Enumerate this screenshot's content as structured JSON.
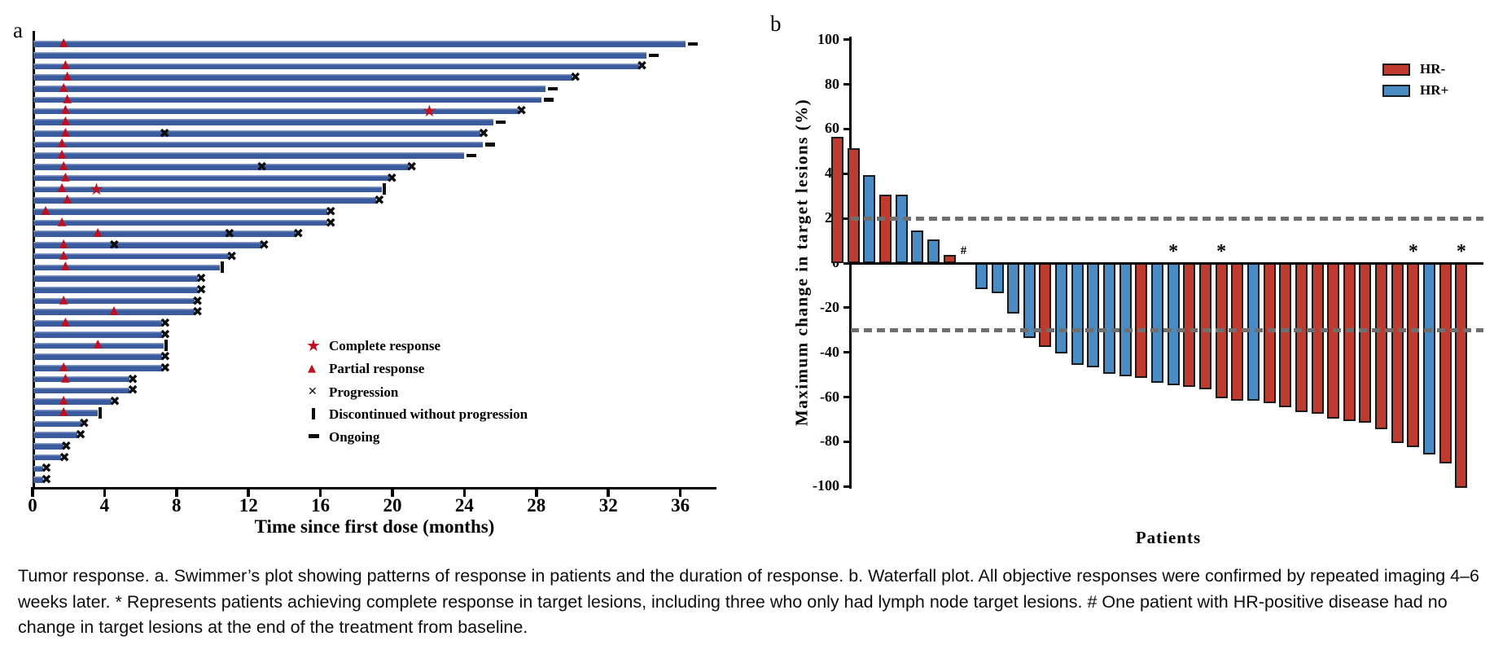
{
  "figure": {
    "panel_a_letter": "a",
    "panel_b_letter": "b",
    "caption": "Tumor response. a. Swimmer’s plot showing patterns of response in patients and the duration of response. b. Waterfall plot. All objective responses were confirmed by repeated imaging 4–6 weeks later. * Represents patients achieving complete response in target lesions, including three who only had lymph node target lesions. # One patient with HR-positive disease had no change in target lesions at the end of the treatment from baseline."
  },
  "colors": {
    "swimmer_bar": "#3a5c9e",
    "response_red": "#c00f1e",
    "hr_negative": "#bf3a2f",
    "hr_positive": "#4a8bc3",
    "marker_black": "#0d0d0d",
    "ref_line_gray": "#6f6f6f"
  },
  "chart_data": [
    {
      "type": "bar",
      "subtype": "swimmer",
      "panel": "a",
      "xlabel": "Time since first dose (months)",
      "xlim": [
        0,
        38
      ],
      "x_ticks": [
        0,
        4,
        8,
        12,
        16,
        20,
        24,
        28,
        32,
        36
      ],
      "bar_color": "#3a5c9e",
      "legend": [
        {
          "marker": "star",
          "label": "Complete response"
        },
        {
          "marker": "triangle",
          "label": "Partial response"
        },
        {
          "marker": "x",
          "label": "Progression"
        },
        {
          "marker": "bar",
          "label": "Discontinued without progression"
        },
        {
          "marker": "dash",
          "label": "Ongoing"
        }
      ],
      "patients": [
        {
          "len": 36.3,
          "pr": 1.8,
          "cr": null,
          "prog": [],
          "end": "ongoing"
        },
        {
          "len": 34.1,
          "pr": null,
          "cr": null,
          "prog": [],
          "end": "ongoing"
        },
        {
          "len": 33.7,
          "pr": 1.9,
          "cr": null,
          "prog": [],
          "end": "x"
        },
        {
          "len": 30.0,
          "pr": 2.0,
          "cr": null,
          "prog": [],
          "end": "x"
        },
        {
          "len": 28.5,
          "pr": 1.8,
          "cr": null,
          "prog": [],
          "end": "ongoing"
        },
        {
          "len": 28.3,
          "pr": 2.0,
          "cr": null,
          "prog": [],
          "end": "ongoing"
        },
        {
          "len": 27.0,
          "pr": 1.9,
          "cr": 22.1,
          "prog": [],
          "end": "x"
        },
        {
          "len": 25.6,
          "pr": 1.9,
          "cr": null,
          "prog": [],
          "end": "ongoing"
        },
        {
          "len": 24.9,
          "pr": 1.9,
          "cr": null,
          "prog": [
            7.4
          ],
          "end": "x"
        },
        {
          "len": 25.0,
          "pr": 1.7,
          "cr": null,
          "prog": [],
          "end": "ongoing"
        },
        {
          "len": 24.0,
          "pr": 1.7,
          "cr": null,
          "prog": [],
          "end": "ongoing"
        },
        {
          "len": 20.9,
          "pr": 1.8,
          "cr": null,
          "prog": [
            12.8
          ],
          "end": "x"
        },
        {
          "len": 19.8,
          "pr": 1.9,
          "cr": null,
          "prog": [],
          "end": "x"
        },
        {
          "len": 19.4,
          "pr": 1.7,
          "cr": 3.6,
          "prog": [],
          "end": "disc"
        },
        {
          "len": 19.1,
          "pr": 2.0,
          "cr": null,
          "prog": [],
          "end": "x"
        },
        {
          "len": 16.4,
          "pr": 0.8,
          "cr": null,
          "prog": [],
          "end": "x"
        },
        {
          "len": 16.4,
          "pr": 1.7,
          "cr": null,
          "prog": [],
          "end": "x"
        },
        {
          "len": 14.6,
          "pr": 3.7,
          "cr": null,
          "prog": [
            11.0
          ],
          "end": "x"
        },
        {
          "len": 12.7,
          "pr": 1.8,
          "cr": null,
          "prog": [
            4.6
          ],
          "end": "x"
        },
        {
          "len": 10.9,
          "pr": 1.8,
          "cr": null,
          "prog": [],
          "end": "x"
        },
        {
          "len": 10.4,
          "pr": 1.9,
          "cr": null,
          "prog": [],
          "end": "disc"
        },
        {
          "len": 9.2,
          "pr": null,
          "cr": null,
          "prog": [],
          "end": "x"
        },
        {
          "len": 9.2,
          "pr": null,
          "cr": null,
          "prog": [],
          "end": "x"
        },
        {
          "len": 9.0,
          "pr": 1.8,
          "cr": null,
          "prog": [],
          "end": "x"
        },
        {
          "len": 9.0,
          "pr": 4.6,
          "cr": null,
          "prog": [],
          "end": "x"
        },
        {
          "len": 7.2,
          "pr": 1.9,
          "cr": null,
          "prog": [],
          "end": "x"
        },
        {
          "len": 7.2,
          "pr": null,
          "cr": null,
          "prog": [],
          "end": "x"
        },
        {
          "len": 7.3,
          "pr": 3.7,
          "cr": null,
          "prog": [],
          "end": "disc"
        },
        {
          "len": 7.2,
          "pr": null,
          "cr": null,
          "prog": [],
          "end": "x"
        },
        {
          "len": 7.2,
          "pr": 1.8,
          "cr": null,
          "prog": [],
          "end": "x"
        },
        {
          "len": 5.4,
          "pr": 1.9,
          "cr": null,
          "prog": [],
          "end": "x"
        },
        {
          "len": 5.4,
          "pr": null,
          "cr": null,
          "prog": [],
          "end": "x"
        },
        {
          "len": 4.4,
          "pr": 1.8,
          "cr": null,
          "prog": [],
          "end": "x"
        },
        {
          "len": 3.6,
          "pr": 1.8,
          "cr": null,
          "prog": [],
          "end": "disc"
        },
        {
          "len": 2.7,
          "pr": null,
          "cr": null,
          "prog": [],
          "end": "x"
        },
        {
          "len": 2.5,
          "pr": null,
          "cr": null,
          "prog": [],
          "end": "x"
        },
        {
          "len": 1.7,
          "pr": null,
          "cr": null,
          "prog": [],
          "end": "x"
        },
        {
          "len": 1.6,
          "pr": null,
          "cr": null,
          "prog": [],
          "end": "x"
        },
        {
          "len": 0.6,
          "pr": null,
          "cr": null,
          "prog": [],
          "end": "x"
        },
        {
          "len": 0.6,
          "pr": null,
          "cr": null,
          "prog": [],
          "end": "x"
        }
      ]
    },
    {
      "type": "bar",
      "subtype": "waterfall",
      "panel": "b",
      "ylabel": "Maximum change in target lesions (%)",
      "xlabel": "Patients",
      "ylim": [
        -100,
        100
      ],
      "y_ticks": [
        100,
        80,
        60,
        40,
        20,
        0,
        -20,
        -40,
        -60,
        -80,
        -100
      ],
      "ref_lines": [
        20,
        -30
      ],
      "legend": [
        {
          "name": "HR-",
          "color": "#bf3a2f"
        },
        {
          "name": "HR+",
          "color": "#4a8bc3"
        }
      ],
      "values": [
        56,
        51,
        39,
        30,
        30,
        14,
        10,
        3,
        0,
        -11,
        -13,
        -22,
        -33,
        -37,
        -40,
        -45,
        -46,
        -49,
        -50,
        -51,
        -53,
        -54,
        -55,
        -56,
        -60,
        -61,
        -61,
        -62,
        -64,
        -66,
        -67,
        -69,
        -70,
        -71,
        -74,
        -80,
        -82,
        -85,
        -89,
        -100
      ],
      "groups": [
        "HR-",
        "HR-",
        "HR+",
        "HR-",
        "HR+",
        "HR+",
        "HR+",
        "HR-",
        "HR+",
        "HR+",
        "HR+",
        "HR+",
        "HR+",
        "HR-",
        "HR+",
        "HR+",
        "HR+",
        "HR+",
        "HR+",
        "HR-",
        "HR+",
        "HR+",
        "HR-",
        "HR-",
        "HR-",
        "HR-",
        "HR+",
        "HR-",
        "HR-",
        "HR-",
        "HR-",
        "HR-",
        "HR-",
        "HR-",
        "HR-",
        "HR-",
        "HR-",
        "HR+",
        "HR-",
        "HR-"
      ],
      "annotations": [
        {
          "index": 8,
          "symbol": "#"
        },
        {
          "index": 21,
          "symbol": "*"
        },
        {
          "index": 24,
          "symbol": "*"
        },
        {
          "index": 36,
          "symbol": "*"
        },
        {
          "index": 39,
          "symbol": "*"
        }
      ]
    }
  ]
}
